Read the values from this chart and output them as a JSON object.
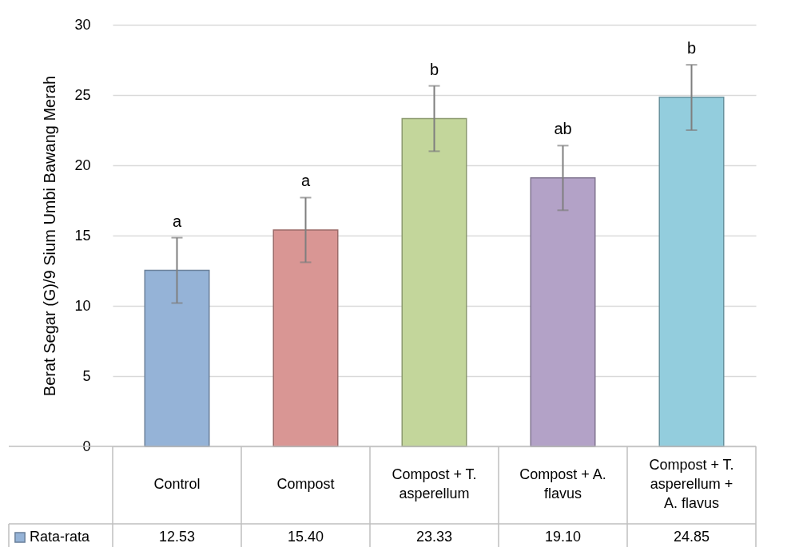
{
  "chart_data": {
    "type": "bar",
    "ylabel": "Berat Segar (G)/9 Sium Umbi Bawang Merah",
    "categories": [
      "Control",
      "Compost",
      "Compost + T. asperellum",
      "Compost + A. flavus",
      "Compost + T. asperellum + A. flavus"
    ],
    "series": [
      {
        "name": "Rata-rata",
        "color": "#95b3d7",
        "colors": [
          "#95b3d7",
          "#d99694",
          "#c3d69b",
          "#b3a2c7",
          "#93cddd"
        ],
        "values": [
          12.53,
          15.4,
          23.33,
          19.1,
          24.85
        ],
        "errors": [
          [
            10.2,
            14.85
          ],
          [
            13.1,
            17.7
          ],
          [
            21.0,
            25.65
          ],
          [
            16.8,
            21.4
          ],
          [
            22.5,
            27.15
          ]
        ]
      }
    ],
    "value_labels": [
      "12.53",
      "15.40",
      "23.33",
      "19.10",
      "24.85"
    ],
    "ylim": [
      0,
      30
    ],
    "yticks": [
      0,
      5,
      10,
      15,
      20,
      25,
      30
    ],
    "grid": "y",
    "legend": "bottom",
    "annotations": [
      {
        "text": "a",
        "x": "Control",
        "y": 14.85
      },
      {
        "text": "a",
        "x": "Compost",
        "y": 17.7
      },
      {
        "text": "b",
        "x": "Compost + T. asperellum",
        "y": 25.65
      },
      {
        "text": "ab",
        "x": "Compost + A. flavus",
        "y": 21.4
      },
      {
        "text": "b",
        "x": "Compost + T. asperellum + A. flavus",
        "y": 27.15
      }
    ]
  }
}
